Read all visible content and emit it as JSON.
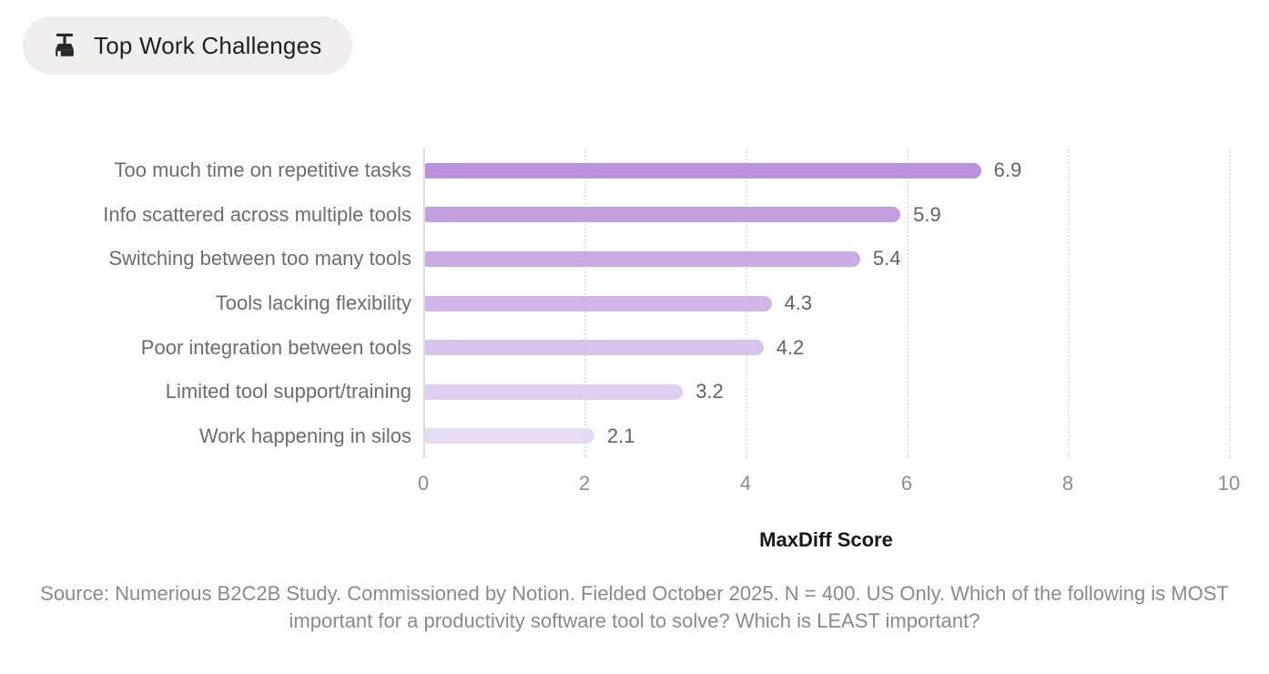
{
  "badge": {
    "icon": "broom-icon",
    "label": "Top Work Challenges",
    "background": "#f0efed",
    "text_color": "#1e2023"
  },
  "chart_data": {
    "type": "bar",
    "orientation": "horizontal",
    "title": "Top Work Challenges",
    "categories": [
      "Too much time on repetitive tasks",
      "Info scattered across multiple tools",
      "Switching between too many tools",
      "Tools lacking flexibility",
      "Poor integration between tools",
      "Limited tool support/training",
      "Work happening in silos"
    ],
    "values": [
      6.9,
      5.9,
      5.4,
      4.3,
      4.2,
      3.2,
      2.1
    ],
    "value_labels": [
      "6.9",
      "5.9",
      "5.4",
      "4.3",
      "4.2",
      "3.2",
      "2.1"
    ],
    "xlabel": "MaxDiff Score",
    "ylabel": "",
    "xlim": [
      0,
      10
    ],
    "xticks": [
      0,
      2,
      4,
      6,
      8,
      10
    ],
    "grid": "vertical dotted gridlines at ticks, solid axis line at 0",
    "legend": "none",
    "bar_colors": [
      "#bc92dc",
      "#c39fe0",
      "#caabe4",
      "#d1b7e8",
      "#d8c3ec",
      "#dfcff0",
      "#e6dbf4"
    ],
    "axis_line_color": "#dcdcdc",
    "gridline_color": "#e2e2e2",
    "category_label_color": "#6d6d6d",
    "value_label_color": "#636363",
    "tick_label_color": "#8d8d8d",
    "xlabel_color": "#18181b"
  },
  "footer": {
    "source_text": "Source: Numerious B2C2B Study. Commissioned by Notion. Fielded October 2025. N = 400. US Only. Which of the following is MOST important for a productivity software tool to solve? Which is LEAST important?"
  }
}
